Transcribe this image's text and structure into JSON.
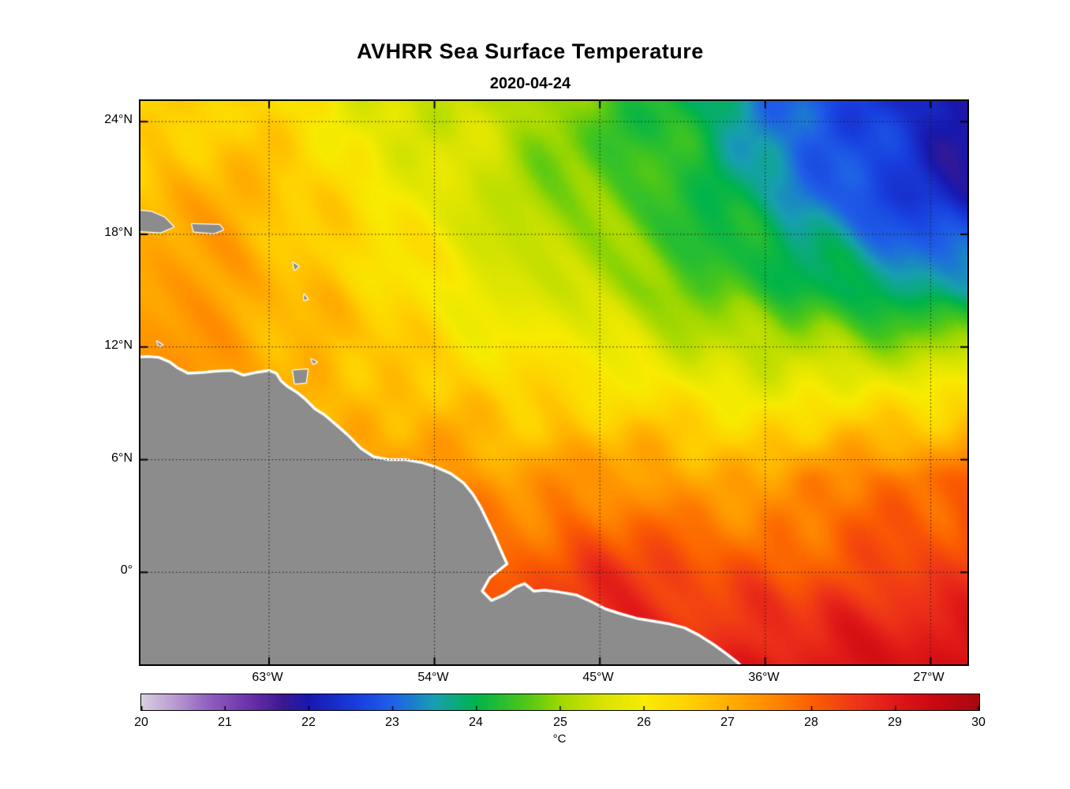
{
  "figure": {
    "title": "AVHRR Sea Surface Temperature",
    "subtitle": "2020-04-24"
  },
  "axes": {
    "x_ticks": [
      {
        "label": "63°W",
        "lon": -63
      },
      {
        "label": "54°W",
        "lon": -54
      },
      {
        "label": "45°W",
        "lon": -45
      },
      {
        "label": "36°W",
        "lon": -36
      },
      {
        "label": "27°W",
        "lon": -27
      }
    ],
    "y_ticks": [
      {
        "label": "24°N",
        "lat": 24
      },
      {
        "label": "18°N",
        "lat": 18
      },
      {
        "label": "12°N",
        "lat": 12
      },
      {
        "label": "6°N",
        "lat": 6
      },
      {
        "label": "0°",
        "lat": 0
      }
    ],
    "lon_range": [
      -70,
      -25
    ],
    "lat_range": [
      -4.9,
      25.1
    ],
    "grid_style": "dotted"
  },
  "colorbar": {
    "label": "°C",
    "min": 20,
    "max": 30,
    "tick_labels": [
      "20",
      "21",
      "22",
      "23",
      "24",
      "25",
      "26",
      "27",
      "28",
      "29",
      "30"
    ]
  },
  "chart_data": {
    "type": "heatmap",
    "title": "AVHRR Sea Surface Temperature",
    "subtitle": "2020-04-24",
    "units": "°C",
    "colorbar_range": [
      20,
      30
    ],
    "lon": [
      -70,
      -65,
      -60,
      -55,
      -50,
      -45,
      -40,
      -35,
      -30,
      -25
    ],
    "lat": [
      25,
      20,
      15,
      10,
      5,
      0,
      -5
    ],
    "sst": [
      [
        26.3,
        26.5,
        26.0,
        25.5,
        25.2,
        24.6,
        24.0,
        23.2,
        22.4,
        21.9
      ],
      [
        26.9,
        27.0,
        26.4,
        25.9,
        25.3,
        24.7,
        24.2,
        23.5,
        22.7,
        22.1
      ],
      [
        27.2,
        27.1,
        26.7,
        26.2,
        25.7,
        25.2,
        24.7,
        24.3,
        23.9,
        23.6
      ],
      [
        27.4,
        27.2,
        27.0,
        26.6,
        26.4,
        26.2,
        26.0,
        25.7,
        25.8,
        26.0
      ],
      [
        27.6,
        27.5,
        27.4,
        27.4,
        27.2,
        27.4,
        27.1,
        27.4,
        27.6,
        27.9
      ],
      [
        28.0,
        28.0,
        27.9,
        27.9,
        28.1,
        28.6,
        28.2,
        28.1,
        28.3,
        28.6
      ],
      [
        28.4,
        28.4,
        28.4,
        28.5,
        28.6,
        28.8,
        28.9,
        29.0,
        29.2,
        29.3
      ]
    ],
    "colormap_stops": [
      [
        20.0,
        "#d8d0e0"
      ],
      [
        20.4,
        "#b89ad0"
      ],
      [
        20.8,
        "#9060c0"
      ],
      [
        21.3,
        "#6a30a8"
      ],
      [
        21.7,
        "#3a1890"
      ],
      [
        22.0,
        "#1818b0"
      ],
      [
        22.6,
        "#1840e0"
      ],
      [
        23.0,
        "#2060e8"
      ],
      [
        23.5,
        "#18a0b0"
      ],
      [
        24.0,
        "#00b44c"
      ],
      [
        24.6,
        "#50c818"
      ],
      [
        25.0,
        "#a0d800"
      ],
      [
        25.5,
        "#d8e400"
      ],
      [
        26.0,
        "#f8ec00"
      ],
      [
        26.5,
        "#ffd400"
      ],
      [
        27.0,
        "#ffb000"
      ],
      [
        27.5,
        "#ff8c00"
      ],
      [
        28.0,
        "#fc6000"
      ],
      [
        28.5,
        "#f03818"
      ],
      [
        29.0,
        "#e01818"
      ],
      [
        29.5,
        "#c80810"
      ],
      [
        30.0,
        "#a80810"
      ]
    ],
    "land_color": "#8c8c8c",
    "coast_color": "#ffffff",
    "mainland": [
      [
        -71.0,
        11.4
      ],
      [
        -69.6,
        11.5
      ],
      [
        -69.0,
        11.45
      ],
      [
        -68.4,
        11.2
      ],
      [
        -68.0,
        10.9
      ],
      [
        -67.4,
        10.6
      ],
      [
        -66.6,
        10.65
      ],
      [
        -65.8,
        10.72
      ],
      [
        -65.0,
        10.75
      ],
      [
        -64.4,
        10.5
      ],
      [
        -63.7,
        10.65
      ],
      [
        -63.0,
        10.75
      ],
      [
        -62.6,
        10.6
      ],
      [
        -62.35,
        10.2
      ],
      [
        -62.0,
        9.9
      ],
      [
        -61.5,
        9.6
      ],
      [
        -61.0,
        9.2
      ],
      [
        -60.5,
        8.7
      ],
      [
        -60.0,
        8.4
      ],
      [
        -59.4,
        7.9
      ],
      [
        -58.7,
        7.3
      ],
      [
        -58.0,
        6.6
      ],
      [
        -57.3,
        6.15
      ],
      [
        -56.5,
        6.0
      ],
      [
        -55.6,
        6.0
      ],
      [
        -54.7,
        5.85
      ],
      [
        -53.9,
        5.6
      ],
      [
        -53.1,
        5.25
      ],
      [
        -52.4,
        4.75
      ],
      [
        -51.9,
        4.15
      ],
      [
        -51.5,
        3.5
      ],
      [
        -51.15,
        2.8
      ],
      [
        -50.75,
        2.0
      ],
      [
        -50.4,
        1.2
      ],
      [
        -50.05,
        0.45
      ],
      [
        -50.5,
        0.1
      ],
      [
        -51.0,
        -0.3
      ],
      [
        -51.4,
        -1.0
      ],
      [
        -50.9,
        -1.5
      ],
      [
        -50.2,
        -1.2
      ],
      [
        -49.6,
        -0.8
      ],
      [
        -49.1,
        -0.6
      ],
      [
        -48.6,
        -1.0
      ],
      [
        -48.0,
        -0.95
      ],
      [
        -47.2,
        -1.05
      ],
      [
        -46.3,
        -1.2
      ],
      [
        -45.5,
        -1.55
      ],
      [
        -44.7,
        -1.95
      ],
      [
        -43.9,
        -2.2
      ],
      [
        -43.0,
        -2.45
      ],
      [
        -42.1,
        -2.6
      ],
      [
        -41.2,
        -2.75
      ],
      [
        -40.4,
        -2.95
      ],
      [
        -39.6,
        -3.35
      ],
      [
        -38.8,
        -3.85
      ],
      [
        -38.1,
        -4.35
      ],
      [
        -37.5,
        -4.8
      ],
      [
        -37.0,
        -5.3
      ],
      [
        -36.6,
        -6.0
      ],
      [
        -71.0,
        -6.0
      ]
    ],
    "islands": [
      [
        [
          -70.5,
          19.3
        ],
        [
          -69.4,
          19.2
        ],
        [
          -68.7,
          18.9
        ],
        [
          -68.2,
          18.4
        ],
        [
          -68.9,
          18.1
        ],
        [
          -70.5,
          18.2
        ]
      ],
      [
        [
          -67.2,
          18.55
        ],
        [
          -65.7,
          18.5
        ],
        [
          -65.5,
          18.25
        ],
        [
          -66.0,
          18.05
        ],
        [
          -67.1,
          18.15
        ]
      ],
      [
        [
          -61.7,
          10.75
        ],
        [
          -60.9,
          10.8
        ],
        [
          -61.0,
          10.1
        ],
        [
          -61.6,
          10.05
        ]
      ],
      [
        [
          -60.7,
          11.35
        ],
        [
          -60.4,
          11.2
        ],
        [
          -60.6,
          11.1
        ]
      ],
      [
        [
          -61.7,
          16.5
        ],
        [
          -61.4,
          16.3
        ],
        [
          -61.6,
          16.1
        ]
      ],
      [
        [
          -61.1,
          14.8
        ],
        [
          -60.9,
          14.55
        ],
        [
          -61.1,
          14.5
        ]
      ],
      [
        [
          -69.1,
          12.3
        ],
        [
          -68.8,
          12.1
        ],
        [
          -69.0,
          12.05
        ]
      ]
    ]
  }
}
